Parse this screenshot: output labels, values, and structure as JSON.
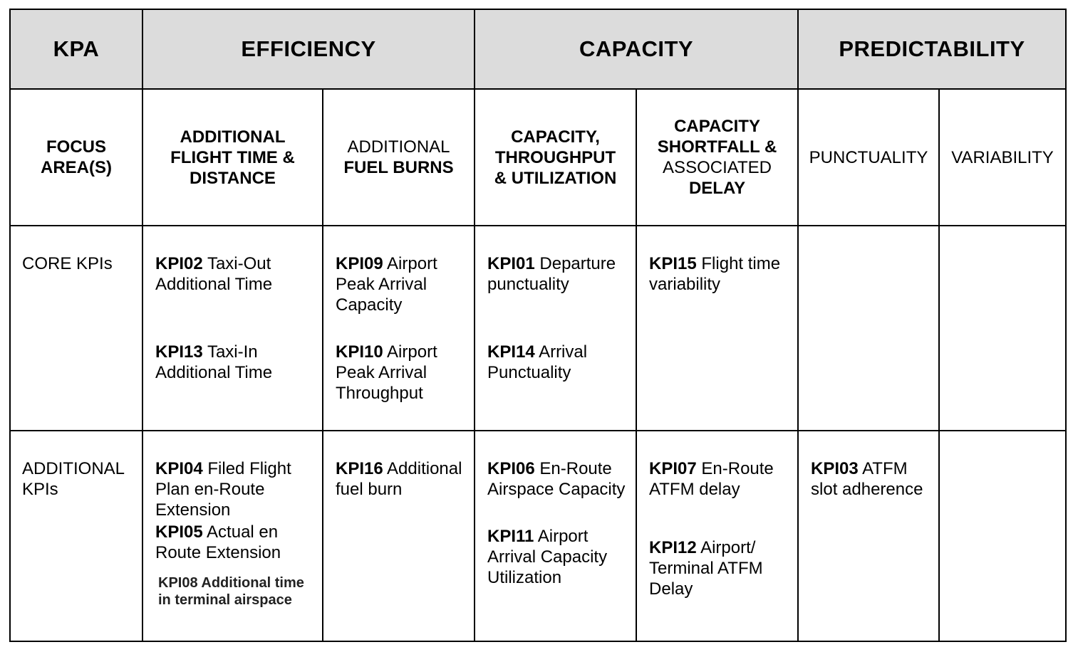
{
  "header": {
    "kpa": "KPA",
    "efficiency": "EFFICIENCY",
    "capacity": "CAPACITY",
    "predictability": "PREDICTABILITY"
  },
  "focus": {
    "label": "FOCUS AREA(S)",
    "flight_time_distance": "ADDITIONAL FLIGHT TIME & DISTANCE",
    "fuel_burns_top": "ADDITIONAL",
    "fuel_burns_bottom": "FUEL BURNS",
    "capacity_throughput": "CAPACITY, THROUGHPUT & UTILIZATION",
    "shortfall_top": "CAPACITY SHORTFALL &",
    "shortfall_mid": "ASSOCIATED",
    "shortfall_bottom": "DELAY",
    "punctuality": "PUNCTUALITY",
    "variability": "VARIABILITY"
  },
  "core": {
    "label": "CORE KPIs",
    "flight_time": [
      {
        "code": "KPI02",
        "text": "Taxi-Out Additional Time"
      },
      {
        "code": "KPI13",
        "text": "Taxi-In Additional Time"
      }
    ],
    "fuel": [
      {
        "code": "KPI09",
        "text": "Airport Peak Arrival Capacity"
      },
      {
        "code": "KPI10",
        "text": "Airport Peak Arrival Throughput"
      }
    ],
    "capacity": [
      {
        "code": "KPI01",
        "text": "Departure punctuality"
      },
      {
        "code": "KPI14",
        "text": "Arrival Punctuality"
      }
    ],
    "shortfall": [
      {
        "code": "KPI15",
        "text": "Flight time variability"
      }
    ]
  },
  "additional": {
    "label": "ADDITIONAL KPIs",
    "flight_time": [
      {
        "code": "KPI04",
        "text": "Filed Flight Plan en-Route Extension"
      },
      {
        "code": "KPI05",
        "text": "Actual en Route Extension"
      }
    ],
    "flight_time_small": "KPI08 Additional time in terminal airspace",
    "fuel": [
      {
        "code": "KPI16",
        "text": "Additional fuel burn"
      }
    ],
    "capacity": [
      {
        "code": "KPI06",
        "text": "En-Route Airspace Capacity"
      },
      {
        "code": "KPI11",
        "text": "Airport Arrival Capacity Utilization"
      }
    ],
    "shortfall": [
      {
        "code": "KPI07",
        "text": "En-Route ATFM delay"
      },
      {
        "code": "KPI12",
        "text": "Airport/ Terminal ATFM Delay"
      }
    ],
    "punctuality": [
      {
        "code": "KPI03",
        "text": "ATFM slot adherence"
      }
    ]
  }
}
